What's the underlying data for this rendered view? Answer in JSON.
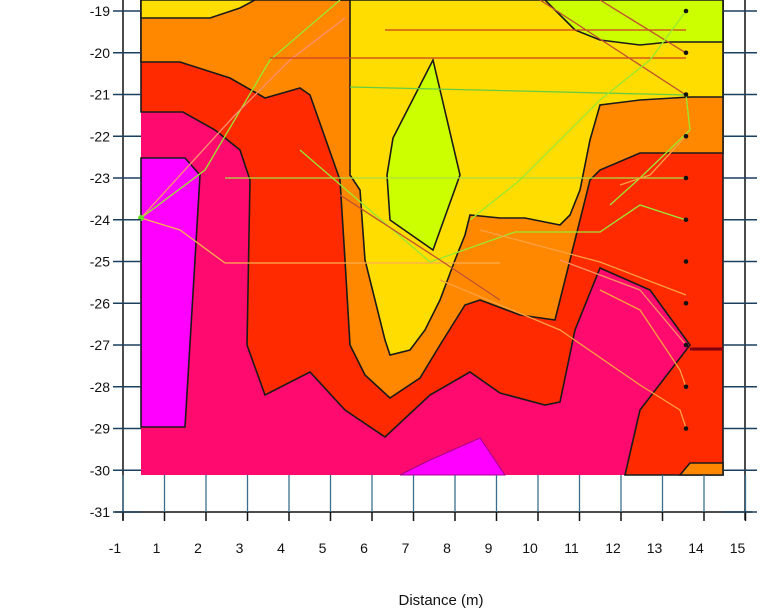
{
  "chart_data": {
    "type": "contour",
    "title": "",
    "xlabel": "Distance (m)",
    "ylabel": "",
    "x_tick_labels": [
      "-1",
      "1",
      "2",
      "3",
      "4",
      "5",
      "6",
      "7",
      "8",
      "9",
      "10",
      "11",
      "12",
      "13",
      "14",
      "15"
    ],
    "y_tick_labels": [
      "-19",
      "-20",
      "-21",
      "-22",
      "-23",
      "-24",
      "-25",
      "-26",
      "-27",
      "-28",
      "-29",
      "-30",
      "-31"
    ],
    "xlim": [
      -1,
      15
    ],
    "ylim": [
      -31,
      -18.7
    ],
    "grid": false,
    "legend": "none",
    "contour_fill_colors": [
      "#ff00ff",
      "#ff0a6e",
      "#ff2a00",
      "#ff8800",
      "#ffdd00",
      "#ccff00"
    ],
    "sensor_points_depths": [
      -19,
      -20,
      -21,
      -22,
      -23,
      -24,
      -25,
      -26,
      -27,
      -28,
      -29
    ],
    "source_point_depth": -24
  }
}
